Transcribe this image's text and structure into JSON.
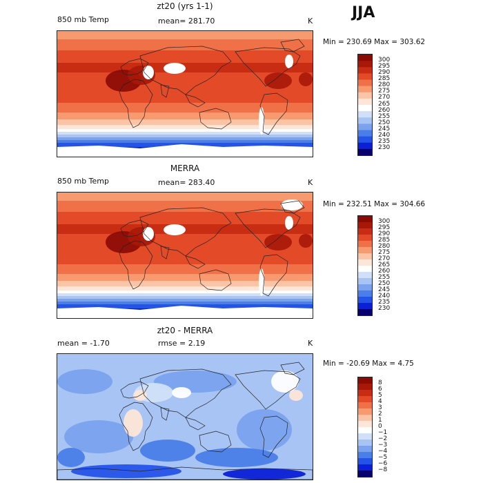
{
  "main_title": "JJA",
  "panels": [
    {
      "title": "zt20 (yrs 1-1)",
      "left_label": "850 mb Temp",
      "center_label": "mean= 281.70",
      "units": "K",
      "minmax": "Min = 230.69 Max = 303.62",
      "colorbar_labels": [
        "300",
        "295",
        "290",
        "285",
        "280",
        "275",
        "270",
        "265",
        "260",
        "255",
        "250",
        "245",
        "240",
        "235",
        "230"
      ]
    },
    {
      "title": "MERRA",
      "left_label": "850 mb Temp",
      "center_label": "mean= 283.40",
      "units": "K",
      "minmax": "Min = 232.51 Max = 304.66",
      "colorbar_labels": [
        "300",
        "295",
        "290",
        "285",
        "280",
        "275",
        "270",
        "265",
        "260",
        "255",
        "250",
        "245",
        "240",
        "235",
        "230"
      ]
    },
    {
      "title": "zt20 - MERRA",
      "left_label": "mean =   -1.70",
      "center_label": "rmse =    2.19",
      "units": "K",
      "minmax": "Min = -20.69 Max =    4.75",
      "colorbar_labels": [
        "8",
        "6",
        "5",
        "4",
        "3",
        "2",
        "1",
        "0",
        "−1",
        "−2",
        "−3",
        "−4",
        "−5",
        "−6",
        "−8"
      ]
    }
  ],
  "chart_data": [
    {
      "type": "heatmap",
      "title": "zt20 (yrs 1-1)",
      "subtitle": "850 mb Temp",
      "units": "K",
      "mean": 281.7,
      "min": 230.69,
      "max": 303.62,
      "contour_levels": [
        230,
        235,
        240,
        245,
        250,
        255,
        260,
        265,
        270,
        275,
        280,
        285,
        290,
        295,
        300
      ],
      "colors": [
        "#08006e",
        "#0a1fd6",
        "#2553e8",
        "#4a7ee8",
        "#7aa2ee",
        "#a8c4f4",
        "#d0e0f8",
        "#ffffff",
        "#fde6d8",
        "#fbc4a6",
        "#f79a70",
        "#f07048",
        "#e24a28",
        "#c82d14",
        "#a81808",
        "#8a0a04"
      ]
    },
    {
      "type": "heatmap",
      "title": "MERRA",
      "subtitle": "850 mb Temp",
      "units": "K",
      "mean": 283.4,
      "min": 232.51,
      "max": 304.66,
      "contour_levels": [
        230,
        235,
        240,
        245,
        250,
        255,
        260,
        265,
        270,
        275,
        280,
        285,
        290,
        295,
        300
      ],
      "colors": [
        "#08006e",
        "#0a1fd6",
        "#2553e8",
        "#4a7ee8",
        "#7aa2ee",
        "#a8c4f4",
        "#d0e0f8",
        "#ffffff",
        "#fde6d8",
        "#fbc4a6",
        "#f79a70",
        "#f07048",
        "#e24a28",
        "#c82d14",
        "#a81808",
        "#8a0a04"
      ]
    },
    {
      "type": "heatmap",
      "title": "zt20 - MERRA",
      "units": "K",
      "mean": -1.7,
      "rmse": 2.19,
      "min": -20.69,
      "max": 4.75,
      "contour_levels": [
        -8,
        -6,
        -5,
        -4,
        -3,
        -2,
        -1,
        0,
        1,
        2,
        3,
        4,
        5,
        6,
        8
      ],
      "colors": [
        "#08006e",
        "#0a1fd6",
        "#2553e8",
        "#4a7ee8",
        "#7aa2ee",
        "#a8c4f4",
        "#d0e0f8",
        "#ffffff",
        "#fde6d8",
        "#fbc4a6",
        "#f79a70",
        "#f07048",
        "#e24a28",
        "#c82d14",
        "#a81808",
        "#8a0a04"
      ]
    }
  ]
}
